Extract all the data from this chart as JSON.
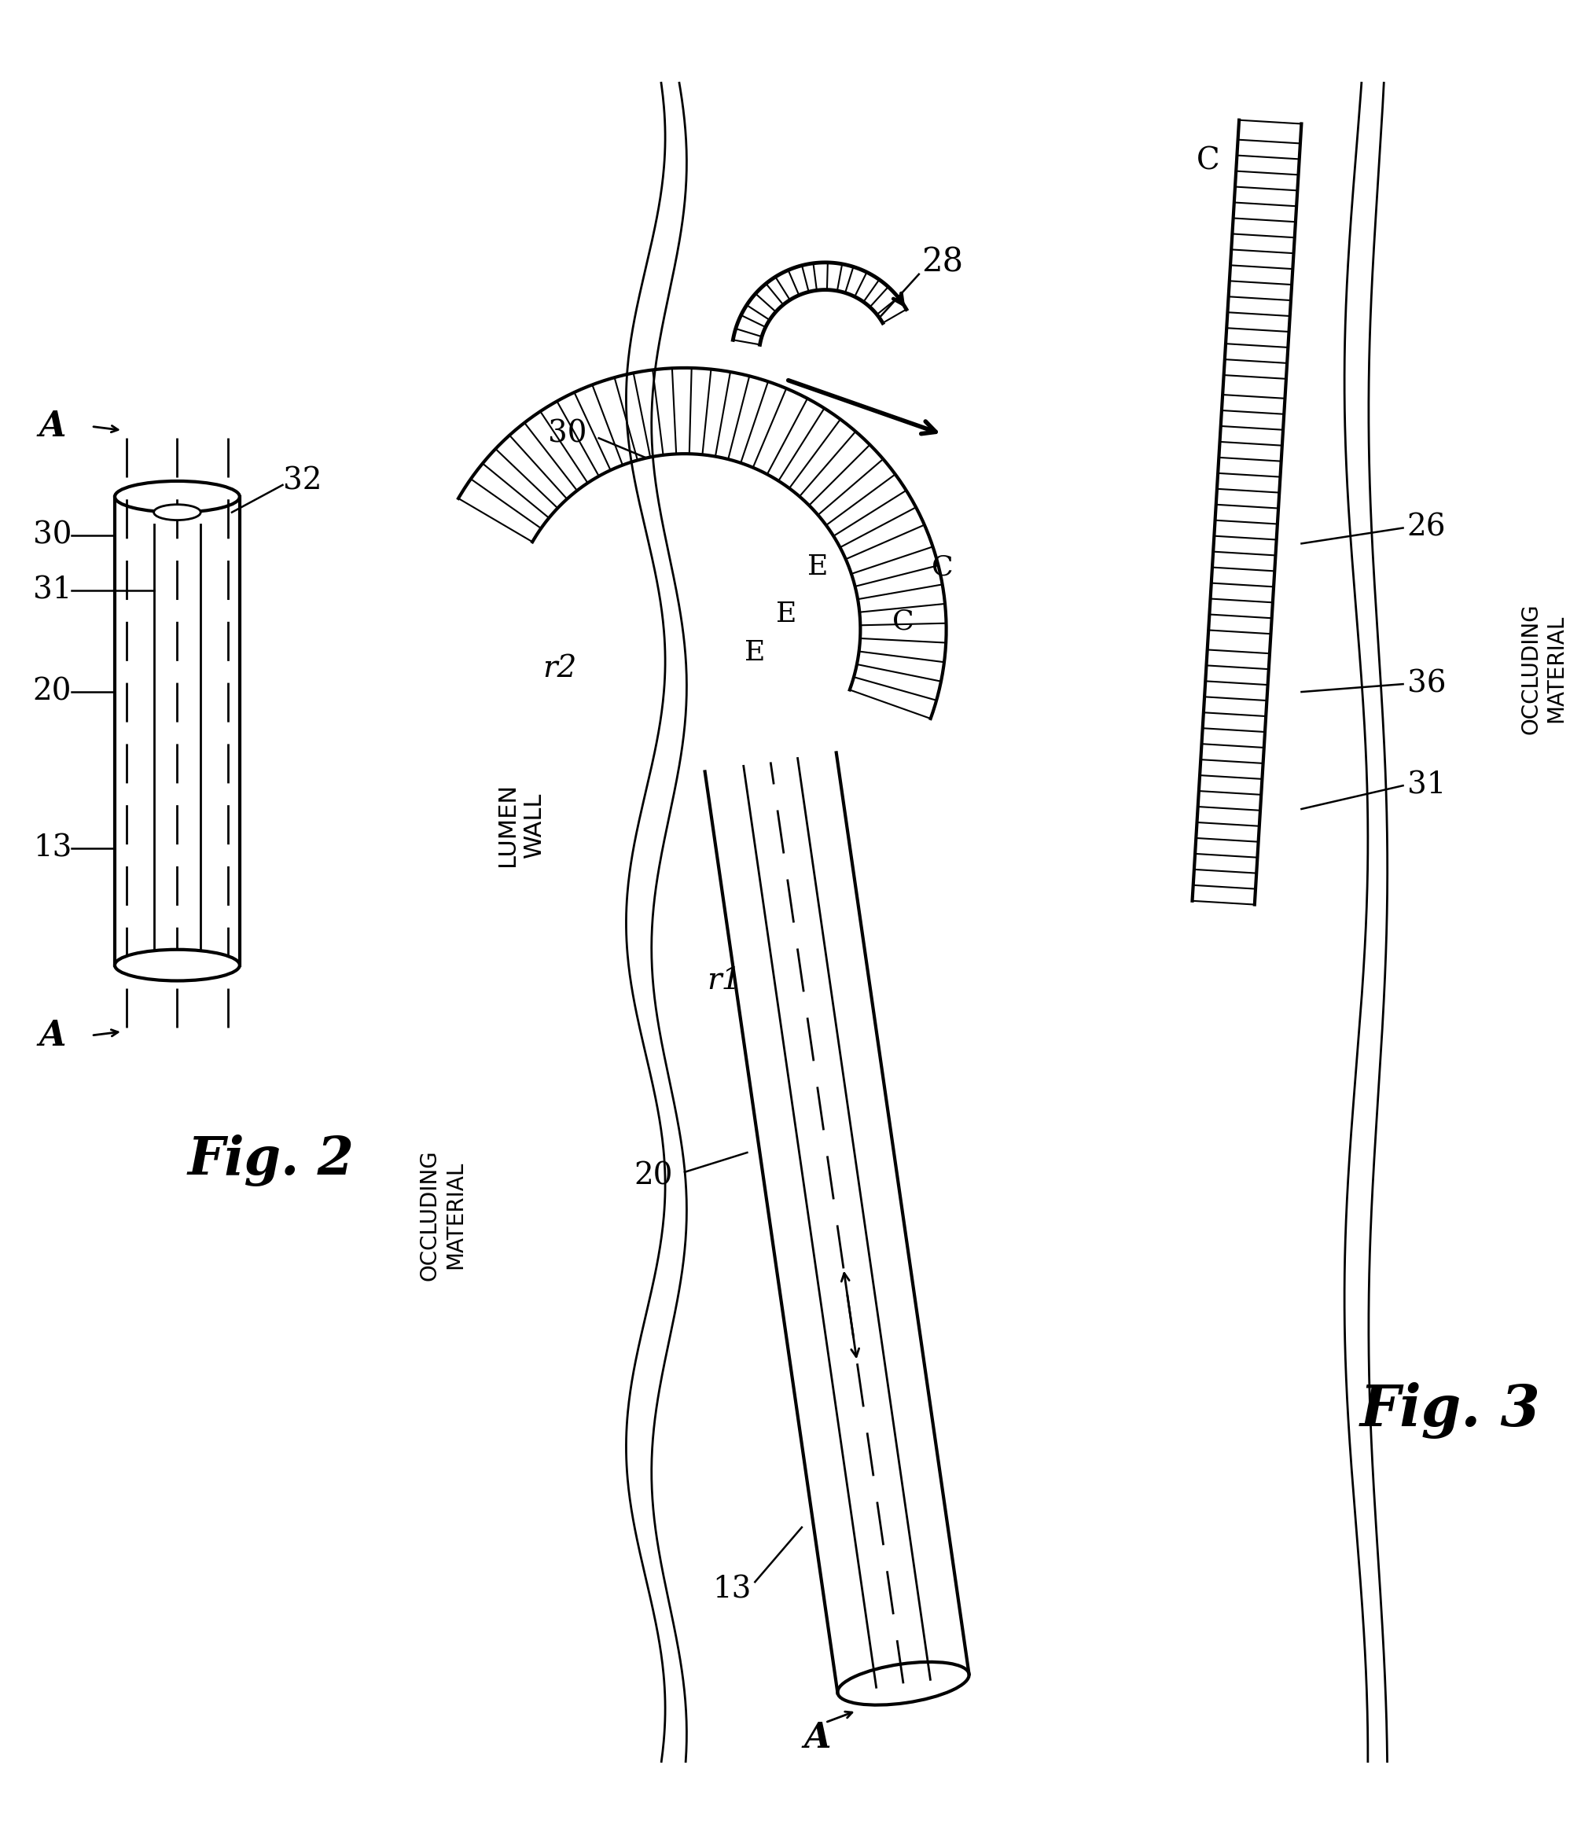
{
  "fig_width": 20.11,
  "fig_height": 23.48,
  "bg_color": "#ffffff",
  "line_color": "#000000",
  "fig2_label": "Fig. 2",
  "fig3_label": "Fig. 3",
  "labels": {
    "A_top": "A",
    "A_bottom": "A",
    "A_fig3": "A",
    "label_13_f2": "13",
    "label_20_f2": "20",
    "label_30_f2": "30",
    "label_31_f2": "31",
    "label_32": "32",
    "label_26": "26",
    "label_28": "28",
    "label_30_f3": "30",
    "label_31_f3": "31",
    "label_36": "36",
    "label_r1": "r1",
    "label_r2": "r2",
    "label_E1": "E",
    "label_E2": "E",
    "label_E3": "E",
    "label_C1": "C",
    "label_C2": "C",
    "label_C3": "C",
    "label_13_f3": "13",
    "label_20_f3": "20",
    "lumen_wall": "LUMEN\nWALL",
    "occluding_left": "OCCLUDING\nMATERIAL",
    "occluding_right": "OCCLUDING\nMATERIAL"
  }
}
